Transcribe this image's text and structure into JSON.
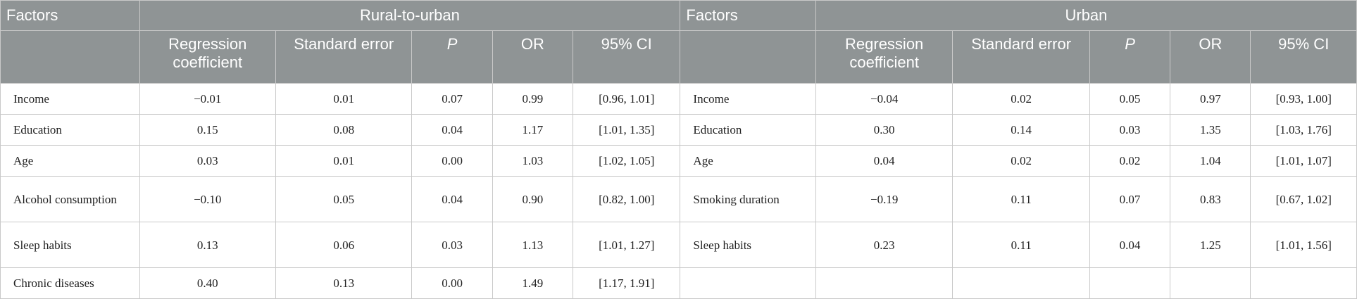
{
  "table": {
    "header": {
      "factors_left": "Factors",
      "group_left": "Rural-to-urban",
      "factors_right": "Factors",
      "group_right": "Urban",
      "sub_columns": [
        "Regression coefficient",
        "Standard error",
        "P",
        "OR",
        "95% CI"
      ]
    },
    "rows": [
      {
        "left": [
          "Income",
          "−0.01",
          "0.01",
          "0.07",
          "0.99",
          "[0.96, 1.01]"
        ],
        "right": [
          "Income",
          "−0.04",
          "0.02",
          "0.05",
          "0.97",
          "[0.93, 1.00]"
        ]
      },
      {
        "left": [
          "Education",
          "0.15",
          "0.08",
          "0.04",
          "1.17",
          "[1.01, 1.35]"
        ],
        "right": [
          "Education",
          "0.30",
          "0.14",
          "0.03",
          "1.35",
          "[1.03, 1.76]"
        ]
      },
      {
        "left": [
          "Age",
          "0.03",
          "0.01",
          "0.00",
          "1.03",
          "[1.02, 1.05]"
        ],
        "right": [
          "Age",
          "0.04",
          "0.02",
          "0.02",
          "1.04",
          "[1.01, 1.07]"
        ]
      },
      {
        "left": [
          "Alcohol consumption",
          "−0.10",
          "0.05",
          "0.04",
          "0.90",
          "[0.82, 1.00]"
        ],
        "right": [
          "Smoking duration",
          "−0.19",
          "0.11",
          "0.07",
          "0.83",
          "[0.67, 1.02]"
        ]
      },
      {
        "left": [
          "Sleep habits",
          "0.13",
          "0.06",
          "0.03",
          "1.13",
          "[1.01, 1.27]"
        ],
        "right": [
          "Sleep habits",
          "0.23",
          "0.11",
          "0.04",
          "1.25",
          "[1.01, 1.56]"
        ]
      },
      {
        "left": [
          "Chronic diseases",
          "0.40",
          "0.13",
          "0.00",
          "1.49",
          "[1.17, 1.91]"
        ],
        "right": [
          "",
          "",
          "",
          "",
          "",
          ""
        ]
      }
    ]
  }
}
